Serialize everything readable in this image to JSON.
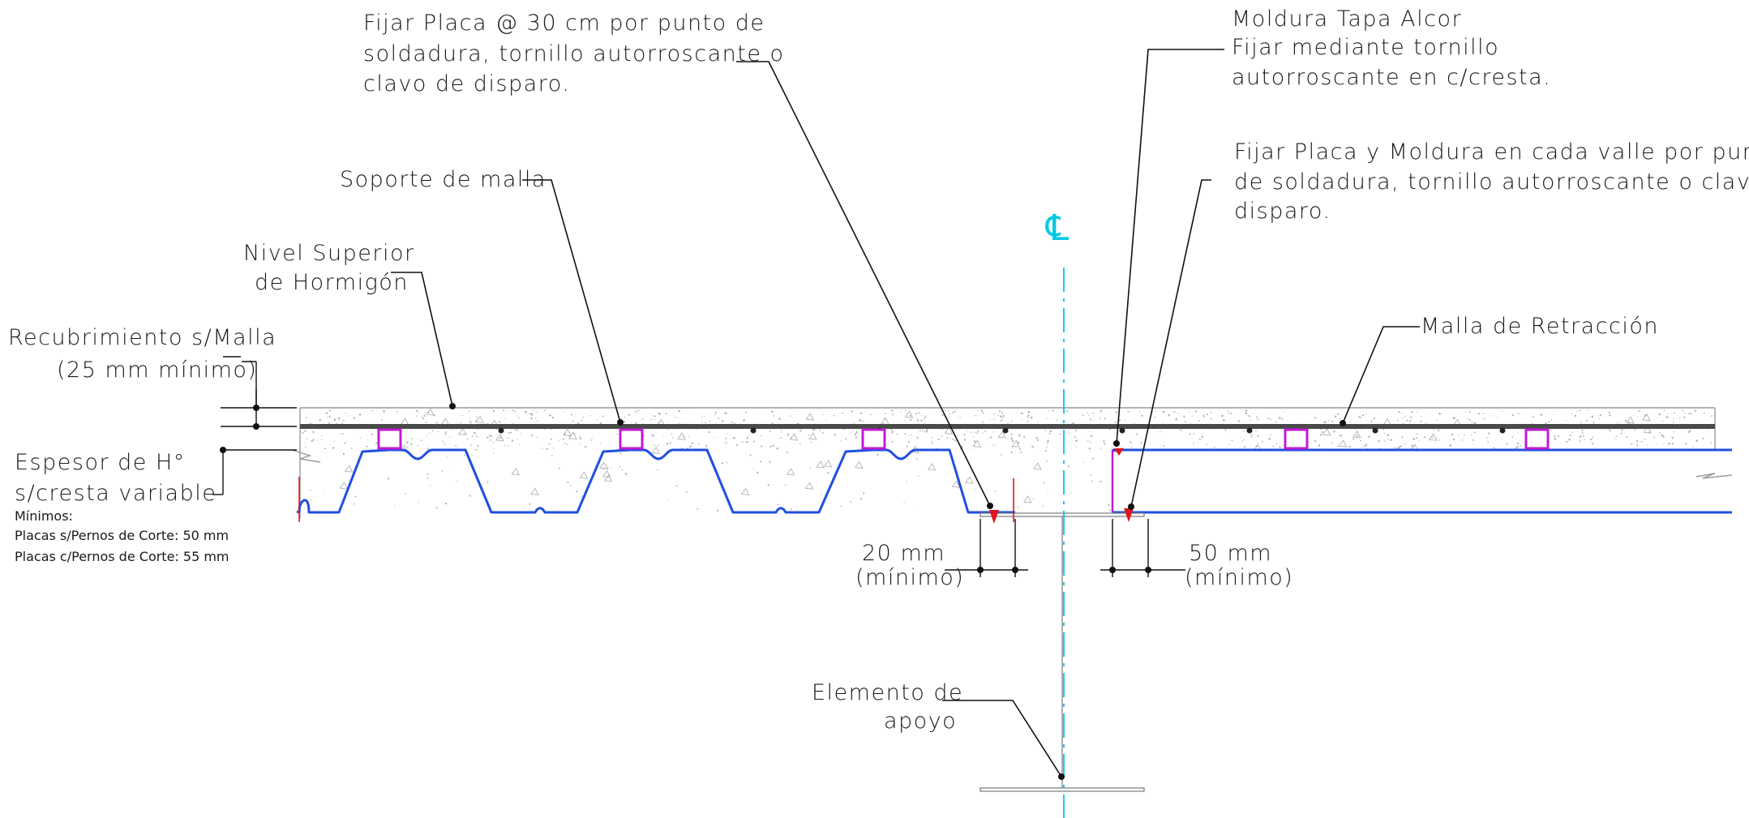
{
  "labels": {
    "fijar_placa": [
      "Fijar Placa @ 30 cm por punto de",
      "soldadura, tornillo autorroscante o",
      "clavo de disparo."
    ],
    "moldura": [
      "Moldura Tapa Alcor",
      "Fijar mediante tornillo",
      "autorroscante en c/cresta."
    ],
    "fijar_placa_moldura": [
      "Fijar Placa y Moldura en cada valle por punto",
      "de soldadura, tornillo autorroscante o clavo de",
      "disparo."
    ],
    "soporte_malla": "Soporte de malla",
    "nivel_superior": [
      "Nivel Superior",
      "de Hormigón"
    ],
    "recubrimiento": [
      "Recubrimiento s/Malla",
      "(25 mm mínimo)"
    ],
    "malla_retraccion": "Malla de Retracción",
    "espesor": [
      "Espesor de H°",
      "s/cresta variable"
    ],
    "minimos": [
      "Mínimos:",
      "Placas s/Pernos de Corte: 50 mm",
      "Placas c/Pernos de Corte: 55 mm"
    ],
    "dim_left": [
      "20 mm",
      "(mínimo)"
    ],
    "dim_right": [
      "50 mm",
      "(mínimo)"
    ],
    "elemento_apoyo": [
      "Elemento de",
      "apoyo"
    ],
    "centerline_symbol": "℄"
  },
  "colors": {
    "deck": "#1f4fe0",
    "chair": "#c21ad6",
    "centerline": "#00c8e6",
    "fastener": "#e0161d",
    "mesh": "#4a4a4a"
  }
}
